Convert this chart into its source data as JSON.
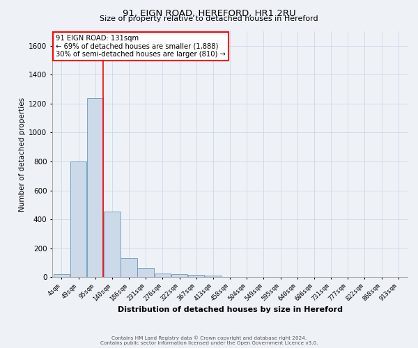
{
  "title": "91, EIGN ROAD, HEREFORD, HR1 2RU",
  "subtitle": "Size of property relative to detached houses in Hereford",
  "xlabel": "Distribution of detached houses by size in Hereford",
  "ylabel": "Number of detached properties",
  "bar_color": "#ccd9e8",
  "bar_edge_color": "#6699bb",
  "categories": [
    "4sqm",
    "49sqm",
    "95sqm",
    "140sqm",
    "186sqm",
    "231sqm",
    "276sqm",
    "322sqm",
    "367sqm",
    "413sqm",
    "458sqm",
    "504sqm",
    "549sqm",
    "595sqm",
    "640sqm",
    "686sqm",
    "731sqm",
    "777sqm",
    "822sqm",
    "868sqm",
    "913sqm"
  ],
  "values": [
    20,
    800,
    1240,
    455,
    130,
    65,
    25,
    20,
    15,
    10,
    0,
    0,
    0,
    0,
    0,
    0,
    0,
    0,
    0,
    0,
    0
  ],
  "ylim": [
    0,
    1700
  ],
  "yticks": [
    0,
    200,
    400,
    600,
    800,
    1000,
    1200,
    1400,
    1600
  ],
  "red_line_x": 2.48,
  "annotation_line1": "91 EIGN ROAD: 131sqm",
  "annotation_line2": "← 69% of detached houses are smaller (1,888)",
  "annotation_line3": "30% of semi-detached houses are larger (810) →",
  "footer_line1": "Contains HM Land Registry data © Crown copyright and database right 2024.",
  "footer_line2": "Contains public sector information licensed under the Open Government Licence v3.0.",
  "grid_color": "#ccd8e8",
  "background_color": "#eef2f7"
}
